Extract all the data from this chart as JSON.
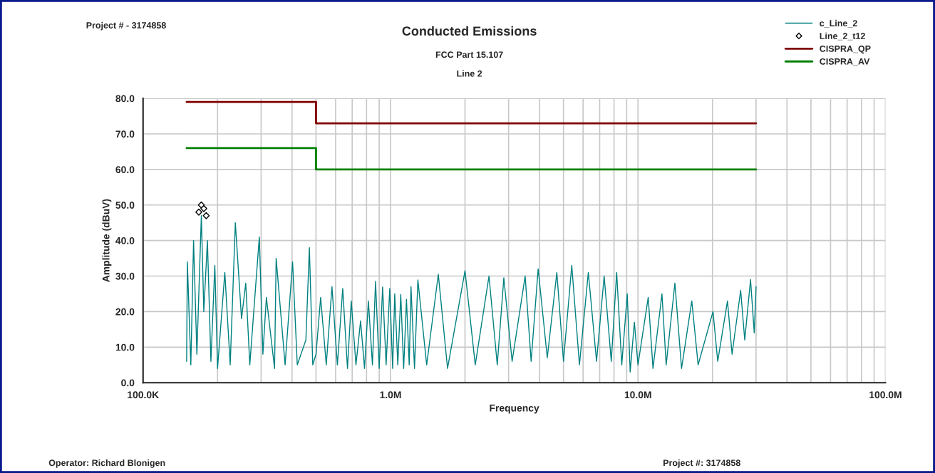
{
  "chart_data": {
    "type": "line",
    "title": "Conducted Emissions",
    "subtitle": "FCC Part 15.107",
    "xlabel": "Frequency",
    "ylabel": "Amplitude (dBuV)",
    "annotations": [
      "Project # - 3174858",
      "Line 2",
      "Operator: Richard Blonigen",
      "Project #: 3174858"
    ],
    "log": "x",
    "xlim": [
      100000,
      100000000
    ],
    "xticks": [
      {
        "value": 100000,
        "label": "100.0K"
      },
      {
        "value": 1000000,
        "label": "1.0M"
      },
      {
        "value": 10000000,
        "label": "10.0M"
      },
      {
        "value": 100000000,
        "label": "100.0M"
      }
    ],
    "ylim": [
      0,
      80
    ],
    "yticks": [
      {
        "value": 0,
        "label": "0.0"
      },
      {
        "value": 10,
        "label": "10.0"
      },
      {
        "value": 20,
        "label": "20.0"
      },
      {
        "value": 30,
        "label": "30.0"
      },
      {
        "value": 40,
        "label": "40.0"
      },
      {
        "value": 50,
        "label": "50.0"
      },
      {
        "value": 60,
        "label": "60.0"
      },
      {
        "value": 70,
        "label": "70.0"
      },
      {
        "value": 80,
        "label": "80.0"
      }
    ],
    "grid": true,
    "legend": "top right",
    "series": [
      {
        "name": "c_Line_2",
        "color": "#008080",
        "x": [
          150000,
          151000,
          156000,
          160000,
          165000,
          172000,
          176000,
          182000,
          188000,
          195000,
          200000,
          214000,
          225000,
          236000,
          250000,
          260000,
          270000,
          295000,
          305000,
          315000,
          340000,
          345000,
          375000,
          402000,
          420000,
          455000,
          470000,
          485000,
          500000,
          522000,
          550000,
          580000,
          610000,
          641000,
          670000,
          694000,
          725000,
          757000,
          785000,
          814000,
          845000,
          870000,
          900000,
          929000,
          960000,
          993000,
          1020000,
          1040000,
          1070000,
          1100000,
          1130000,
          1160000,
          1190000,
          1210000,
          1250000,
          1290000,
          1400000,
          1560000,
          1700000,
          2000000,
          2200000,
          2500000,
          2700000,
          2870000,
          3100000,
          3500000,
          3700000,
          3950000,
          4300000,
          4700000,
          5000000,
          5400000,
          5800000,
          6300000,
          6800000,
          7300000,
          7800000,
          8200000,
          8600000,
          9050000,
          9300000,
          9670000,
          10000000,
          11000000,
          11500000,
          12500000,
          13000000,
          14100000,
          15000000,
          16500000,
          17500000,
          20100000,
          21000000,
          23000000,
          24000000,
          26000000,
          27000000,
          28500000,
          29500000,
          30000000
        ],
        "values": [
          6,
          34,
          5,
          40,
          8,
          47,
          20,
          40,
          6,
          33,
          4,
          31,
          5,
          45,
          18,
          28,
          5,
          41,
          8,
          24,
          4,
          35,
          5,
          34,
          5,
          12,
          38,
          5,
          8,
          24,
          5,
          27,
          5,
          26.5,
          4,
          23,
          5,
          17.4,
          4,
          23,
          5,
          28.5,
          4,
          26.9,
          5,
          26.5,
          4,
          25,
          5,
          24.8,
          4,
          23.4,
          5,
          27,
          4,
          28.9,
          5,
          30.5,
          4,
          31.5,
          5,
          30,
          5,
          29.5,
          6,
          30,
          6,
          32,
          7,
          31,
          6,
          33,
          5,
          31,
          6,
          30,
          6,
          31,
          5,
          25,
          3,
          17,
          5,
          24,
          4,
          25,
          5,
          28,
          4,
          23,
          5,
          20,
          6,
          23,
          8,
          26,
          12,
          29,
          14,
          27
        ]
      },
      {
        "name": "Line_2_t12",
        "type": "scatter",
        "color": "#000000",
        "marker": "diamond",
        "x": [
          168000,
          172000,
          176000,
          180000
        ],
        "values": [
          48,
          50,
          49,
          47
        ]
      },
      {
        "name": "CISPRA_QP",
        "type": "step",
        "color": "#800000",
        "x": [
          150000,
          500000,
          30000000
        ],
        "values": [
          79,
          73,
          73
        ]
      },
      {
        "name": "CISPRA_AV",
        "type": "step",
        "color": "#008000",
        "x": [
          150000,
          500000,
          30000000
        ],
        "values": [
          66,
          60,
          60
        ]
      }
    ]
  }
}
